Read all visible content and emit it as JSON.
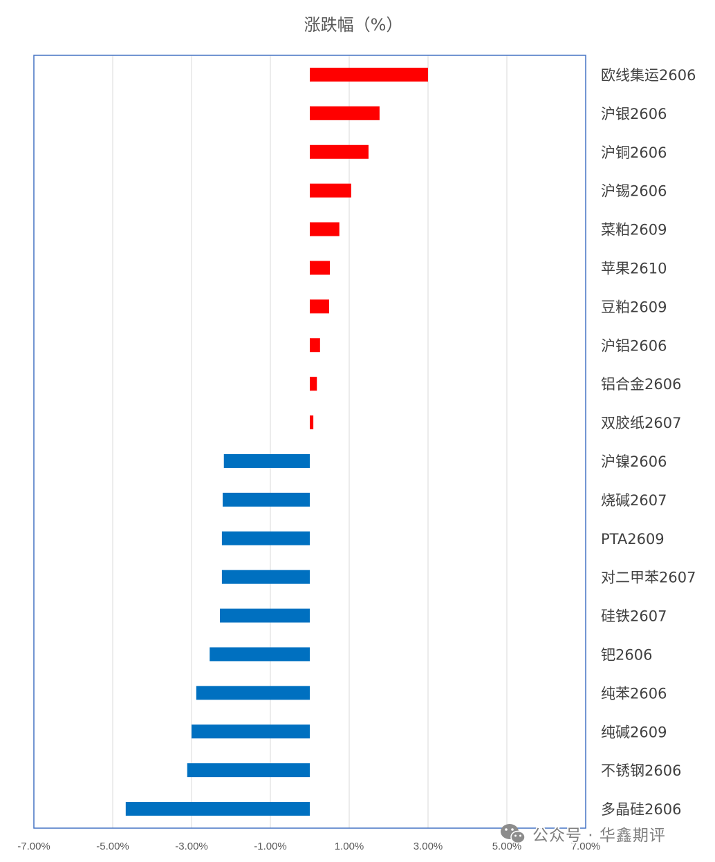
{
  "chart_data": {
    "type": "bar",
    "orientation": "horizontal",
    "title": "涨跌幅（%）",
    "categories": [
      "欧线集运2606",
      "沪银2606",
      "沪铜2606",
      "沪锡2606",
      "菜粕2609",
      "苹果2610",
      "豆粕2609",
      "沪铝2606",
      "铝合金2606",
      "双胶纸2607",
      "沪镍2606",
      "烧碱2607",
      "PTA2609",
      "对二甲苯2607",
      "硅铁2607",
      "钯2606",
      "纯苯2606",
      "纯碱2609",
      "不锈钢2606",
      "多晶硅2606"
    ],
    "values": [
      3.0,
      1.77,
      1.49,
      1.05,
      0.75,
      0.51,
      0.49,
      0.26,
      0.18,
      0.09,
      -2.18,
      -2.21,
      -2.23,
      -2.23,
      -2.28,
      -2.54,
      -2.88,
      -3.0,
      -3.11,
      -4.67
    ],
    "xlim": [
      -7,
      7
    ],
    "tick_values": [
      -7,
      -5,
      -3,
      -1,
      1,
      3,
      5,
      7
    ],
    "tick_labels": [
      "-7.00%",
      "-5.00%",
      "-3.00%",
      "-1.00%",
      "1.00%",
      "3.00%",
      "5.00%",
      "7.00%"
    ],
    "category_label_position": "right",
    "grid": true,
    "legend": "none",
    "colors": {
      "positive": "#FF0000",
      "negative": "#0070C0",
      "plot_border": "#4472C4",
      "grid": "#D9D9D9"
    }
  },
  "watermark": {
    "icon": "wechat-icon",
    "text": "公众号 · 华鑫期评"
  }
}
